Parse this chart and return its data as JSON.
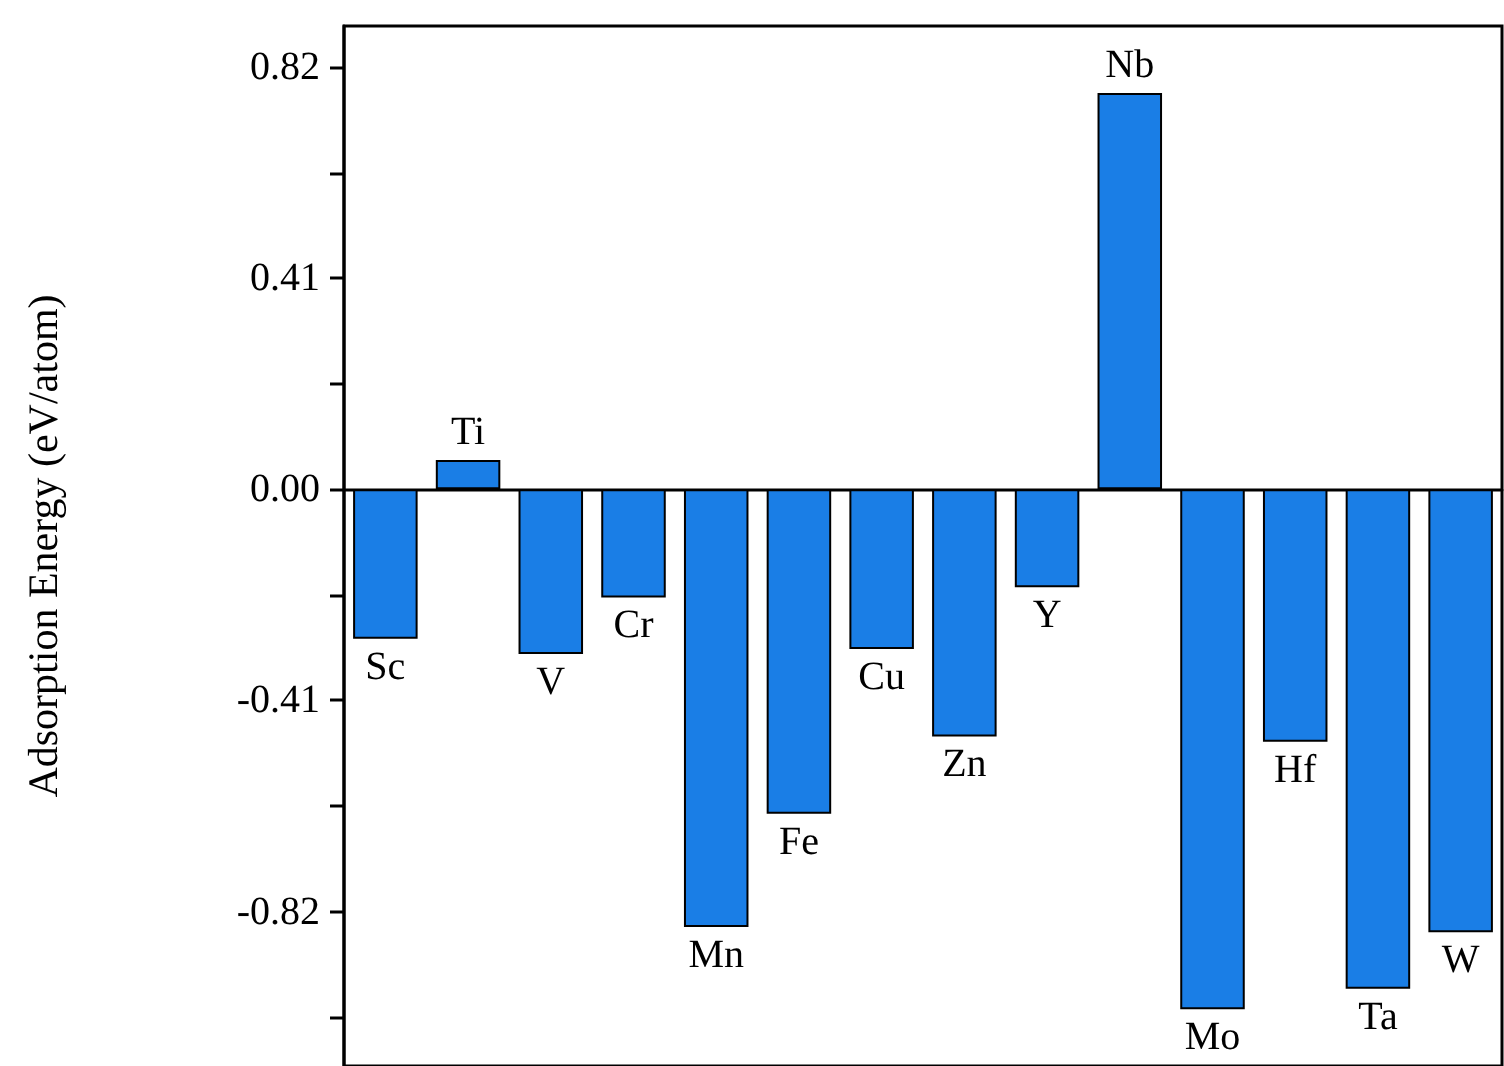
{
  "chart_data": {
    "type": "bar",
    "ylabel": "Adsorption Energy (eV/atom)",
    "categories": [
      "Sc",
      "Ti",
      "V",
      "Cr",
      "Mn",
      "Fe",
      "Cu",
      "Zn",
      "Y",
      "Nb",
      "Mo",
      "Hf",
      "Ta",
      "W"
    ],
    "values": [
      -0.29,
      0.057,
      -0.32,
      -0.21,
      -0.85,
      -0.63,
      -0.31,
      -0.48,
      -0.19,
      0.77,
      -1.01,
      -0.49,
      -0.97,
      -0.86
    ],
    "color": "#1a7ee6",
    "ylim": [
      -1.12,
      0.9
    ],
    "yticks": [
      {
        "value": -1.025,
        "label": null
      },
      {
        "value": -0.82,
        "label": "-0.82"
      },
      {
        "value": -0.615,
        "label": null
      },
      {
        "value": -0.41,
        "label": "-0.41"
      },
      {
        "value": -0.205,
        "label": null
      },
      {
        "value": 0,
        "label": "0.00"
      },
      {
        "value": 0.205,
        "label": null
      },
      {
        "value": 0.41,
        "label": "0.41"
      },
      {
        "value": 0.615,
        "label": null
      },
      {
        "value": 0.82,
        "label": "0.82"
      }
    ],
    "tick_labels": "y"
  }
}
